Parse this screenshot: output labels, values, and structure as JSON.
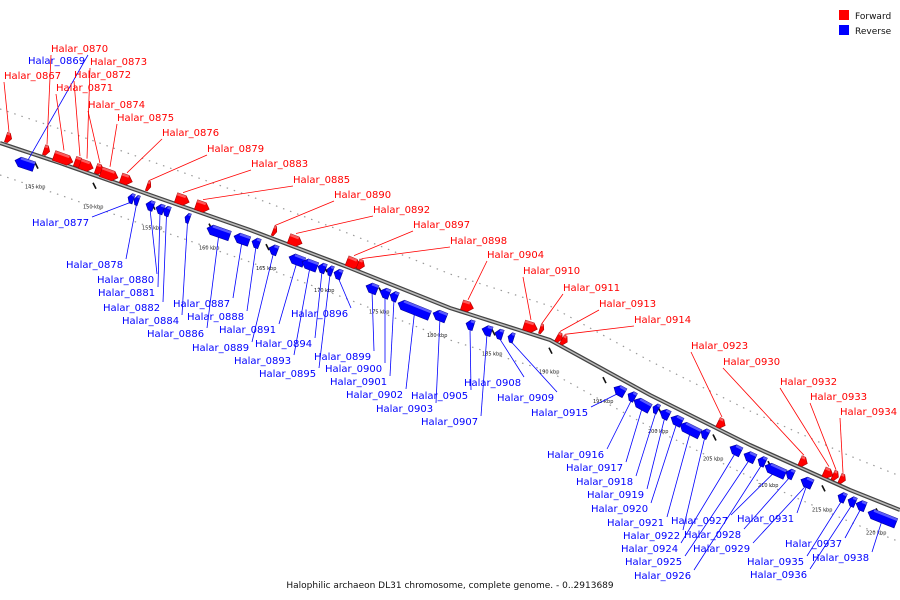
{
  "caption": "Halophilic archaeon DL31 chromosome, complete genome. - 0..2913689",
  "legend": [
    {
      "label": "Forward",
      "color": "#ff0000"
    },
    {
      "label": "Reverse",
      "color": "#0000ff"
    }
  ],
  "colors": {
    "forward": "#ff0000",
    "reverse": "#0000ff",
    "backbone": "#888888"
  },
  "ticks": [
    "145 kbp",
    "150 kbp",
    "155 kbp",
    "160 kbp",
    "165 kbp",
    "170 kbp",
    "175 kbp",
    "180 kbp",
    "185 kbp",
    "190 kbp",
    "195 kbp",
    "200 kbp",
    "205 kbp",
    "210 kbp",
    "215 kbp",
    "220 kbp"
  ],
  "genes": [
    {
      "name": "Halar_0867",
      "strand": "forward"
    },
    {
      "name": "Halar_0869",
      "strand": "reverse"
    },
    {
      "name": "Halar_0870",
      "strand": "forward"
    },
    {
      "name": "Halar_0871",
      "strand": "forward"
    },
    {
      "name": "Halar_0872",
      "strand": "forward"
    },
    {
      "name": "Halar_0873",
      "strand": "forward"
    },
    {
      "name": "Halar_0874",
      "strand": "forward"
    },
    {
      "name": "Halar_0875",
      "strand": "forward"
    },
    {
      "name": "Halar_0876",
      "strand": "forward"
    },
    {
      "name": "Halar_0877",
      "strand": "reverse"
    },
    {
      "name": "Halar_0878",
      "strand": "reverse"
    },
    {
      "name": "Halar_0879",
      "strand": "forward"
    },
    {
      "name": "Halar_0880",
      "strand": "reverse"
    },
    {
      "name": "Halar_0881",
      "strand": "reverse"
    },
    {
      "name": "Halar_0882",
      "strand": "reverse"
    },
    {
      "name": "Halar_0883",
      "strand": "forward"
    },
    {
      "name": "Halar_0884",
      "strand": "reverse"
    },
    {
      "name": "Halar_0885",
      "strand": "forward"
    },
    {
      "name": "Halar_0886",
      "strand": "reverse"
    },
    {
      "name": "Halar_0887",
      "strand": "reverse"
    },
    {
      "name": "Halar_0888",
      "strand": "reverse"
    },
    {
      "name": "Halar_0889",
      "strand": "reverse"
    },
    {
      "name": "Halar_0890",
      "strand": "forward"
    },
    {
      "name": "Halar_0891",
      "strand": "reverse"
    },
    {
      "name": "Halar_0892",
      "strand": "forward"
    },
    {
      "name": "Halar_0893",
      "strand": "reverse"
    },
    {
      "name": "Halar_0894",
      "strand": "reverse"
    },
    {
      "name": "Halar_0895",
      "strand": "reverse"
    },
    {
      "name": "Halar_0896",
      "strand": "reverse"
    },
    {
      "name": "Halar_0897",
      "strand": "forward"
    },
    {
      "name": "Halar_0898",
      "strand": "forward"
    },
    {
      "name": "Halar_0899",
      "strand": "reverse"
    },
    {
      "name": "Halar_0900",
      "strand": "reverse"
    },
    {
      "name": "Halar_0901",
      "strand": "reverse"
    },
    {
      "name": "Halar_0902",
      "strand": "reverse"
    },
    {
      "name": "Halar_0903",
      "strand": "reverse"
    },
    {
      "name": "Halar_0904",
      "strand": "forward"
    },
    {
      "name": "Halar_0905",
      "strand": "reverse"
    },
    {
      "name": "Halar_0907",
      "strand": "reverse"
    },
    {
      "name": "Halar_0908",
      "strand": "reverse"
    },
    {
      "name": "Halar_0909",
      "strand": "reverse"
    },
    {
      "name": "Halar_0910",
      "strand": "forward"
    },
    {
      "name": "Halar_0911",
      "strand": "forward"
    },
    {
      "name": "Halar_0913",
      "strand": "forward"
    },
    {
      "name": "Halar_0914",
      "strand": "forward"
    },
    {
      "name": "Halar_0915",
      "strand": "reverse"
    },
    {
      "name": "Halar_0916",
      "strand": "reverse"
    },
    {
      "name": "Halar_0917",
      "strand": "reverse"
    },
    {
      "name": "Halar_0918",
      "strand": "reverse"
    },
    {
      "name": "Halar_0919",
      "strand": "reverse"
    },
    {
      "name": "Halar_0920",
      "strand": "reverse"
    },
    {
      "name": "Halar_0921",
      "strand": "reverse"
    },
    {
      "name": "Halar_0922",
      "strand": "reverse"
    },
    {
      "name": "Halar_0923",
      "strand": "forward"
    },
    {
      "name": "Halar_0924",
      "strand": "reverse"
    },
    {
      "name": "Halar_0925",
      "strand": "reverse"
    },
    {
      "name": "Halar_0926",
      "strand": "reverse"
    },
    {
      "name": "Halar_0927",
      "strand": "reverse"
    },
    {
      "name": "Halar_0928",
      "strand": "reverse"
    },
    {
      "name": "Halar_0929",
      "strand": "reverse"
    },
    {
      "name": "Halar_0930",
      "strand": "forward"
    },
    {
      "name": "Halar_0931",
      "strand": "reverse"
    },
    {
      "name": "Halar_0932",
      "strand": "forward"
    },
    {
      "name": "Halar_0933",
      "strand": "forward"
    },
    {
      "name": "Halar_0934",
      "strand": "forward"
    },
    {
      "name": "Halar_0935",
      "strand": "reverse"
    },
    {
      "name": "Halar_0936",
      "strand": "reverse"
    },
    {
      "name": "Halar_0937",
      "strand": "reverse"
    },
    {
      "name": "Halar_0938",
      "strand": "reverse"
    }
  ]
}
